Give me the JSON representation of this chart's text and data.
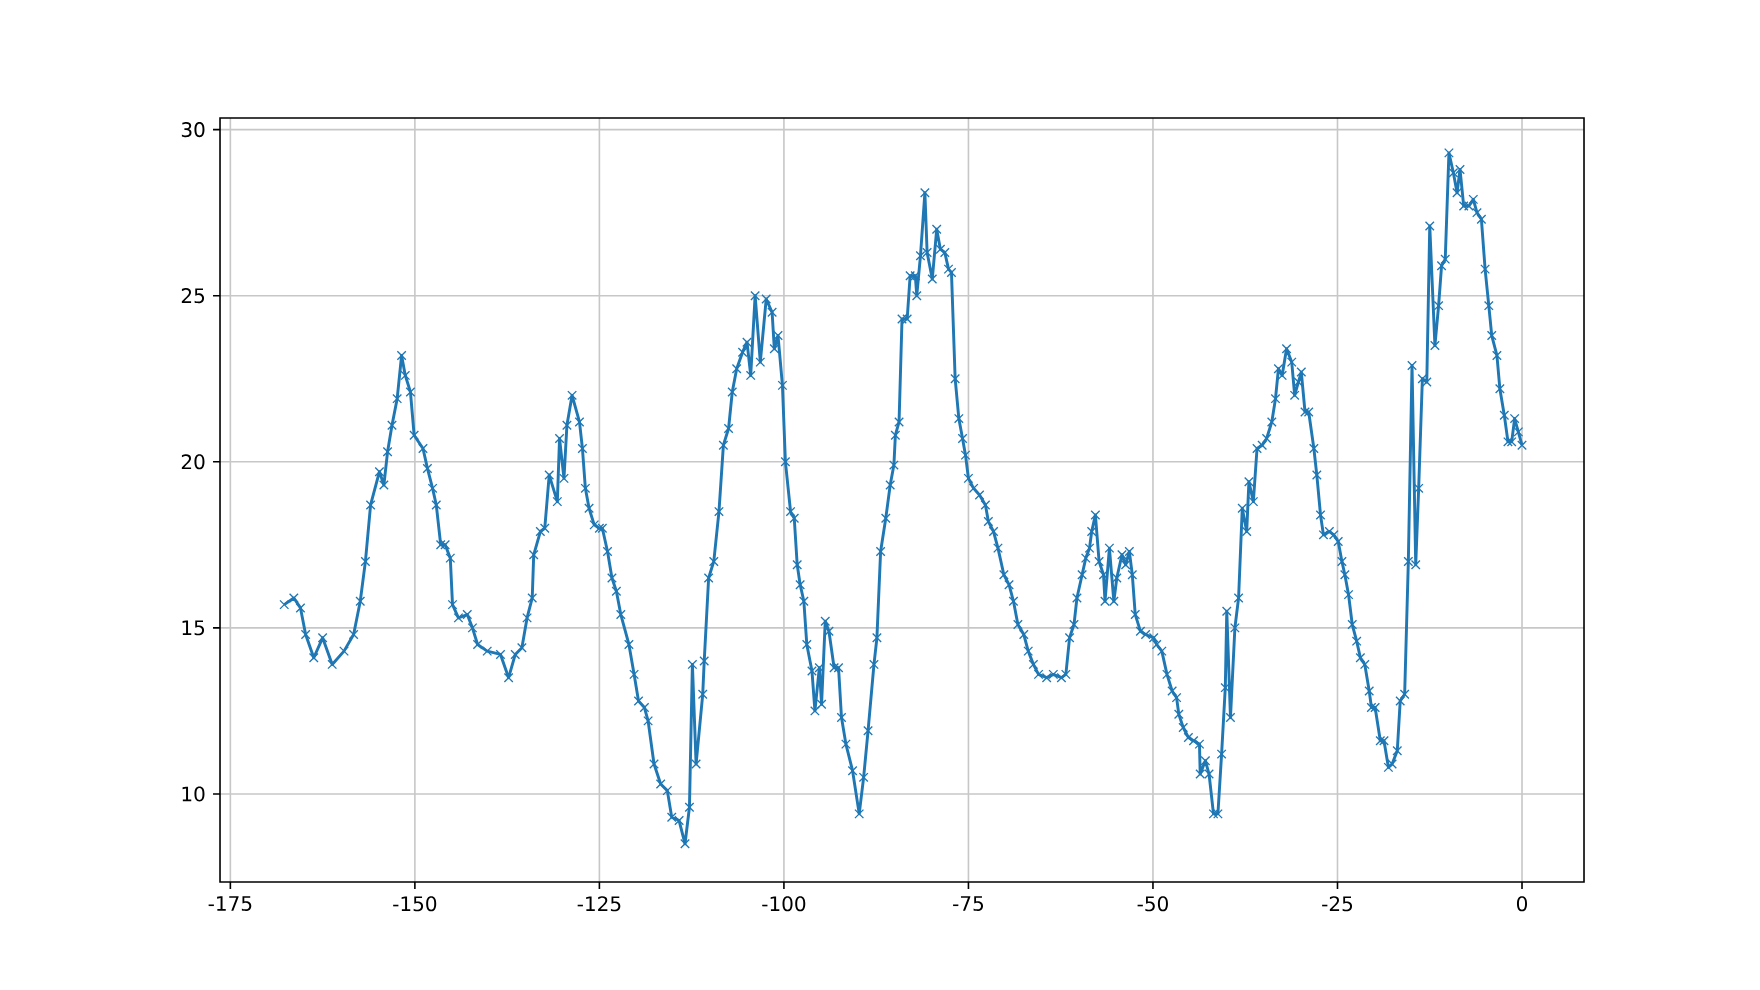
{
  "chart_data": {
    "type": "line",
    "color": "#1f77b4",
    "marker": "cross",
    "line_style": "solid",
    "grid": true,
    "xlim": [
      -176.4,
      8.4
    ],
    "ylim": [
      7.35,
      30.35
    ],
    "xticks": [
      -175,
      -150,
      -125,
      -100,
      -75,
      -50,
      -25,
      0
    ],
    "yticks": [
      10,
      15,
      20,
      25,
      30
    ],
    "x": [
      -167.7,
      -166.4,
      -165.5,
      -164.8,
      -163.7,
      -162.5,
      -161.2,
      -159.6,
      -158.3,
      -157.4,
      -156.7,
      -156.0,
      -154.8,
      -154.2,
      -153.7,
      -153.1,
      -152.4,
      -151.8,
      -151.3,
      -150.6,
      -150.1,
      -148.9,
      -148.3,
      -147.6,
      -147.1,
      -146.5,
      -145.9,
      -145.2,
      -144.9,
      -144.1,
      -142.9,
      -142.2,
      -141.5,
      -140.2,
      -138.4,
      -137.3,
      -136.4,
      -135.5,
      -134.8,
      -134.1,
      -133.9,
      -133.0,
      -132.4,
      -131.8,
      -130.7,
      -130.4,
      -129.8,
      -129.4,
      -128.7,
      -127.7,
      -127.3,
      -126.9,
      -126.4,
      -125.7,
      -125.0,
      -124.6,
      -123.9,
      -123.3,
      -122.7,
      -122.1,
      -121.0,
      -120.3,
      -119.7,
      -118.9,
      -118.4,
      -117.6,
      -116.7,
      -115.8,
      -115.2,
      -114.2,
      -113.4,
      -112.8,
      -112.4,
      -111.9,
      -111.0,
      -110.8,
      -110.2,
      -109.5,
      -108.8,
      -108.2,
      -107.5,
      -107.0,
      -106.4,
      -105.6,
      -105.0,
      -104.5,
      -103.9,
      -103.2,
      -102.4,
      -101.6,
      -101.3,
      -100.8,
      -100.2,
      -99.8,
      -99.1,
      -98.6,
      -98.2,
      -97.8,
      -97.3,
      -96.9,
      -96.2,
      -95.8,
      -95.2,
      -94.9,
      -94.4,
      -93.9,
      -93.2,
      -92.6,
      -92.2,
      -91.6,
      -90.7,
      -89.8,
      -89.2,
      -88.6,
      -87.8,
      -87.4,
      -86.9,
      -86.2,
      -85.6,
      -85.1,
      -84.9,
      -84.4,
      -84.0,
      -83.3,
      -82.9,
      -82.2,
      -82.0,
      -81.5,
      -80.9,
      -80.6,
      -79.9,
      -79.3,
      -78.8,
      -78.2,
      -77.7,
      -77.3,
      -76.8,
      -76.3,
      -75.8,
      -75.4,
      -75.0,
      -74.3,
      -73.5,
      -72.7,
      -72.3,
      -71.6,
      -71.0,
      -70.2,
      -69.5,
      -68.9,
      -68.3,
      -67.5,
      -66.9,
      -66.2,
      -65.5,
      -64.4,
      -63.5,
      -62.4,
      -61.8,
      -61.3,
      -60.7,
      -60.3,
      -59.6,
      -59.1,
      -58.6,
      -58.3,
      -57.8,
      -57.3,
      -56.7,
      -56.5,
      -55.9,
      -55.3,
      -54.9,
      -54.2,
      -53.7,
      -53.2,
      -52.8,
      -52.4,
      -51.7,
      -51.0,
      -49.9,
      -49.5,
      -48.8,
      -48.1,
      -47.4,
      -46.8,
      -46.5,
      -45.9,
      -45.2,
      -44.5,
      -43.7,
      -43.6,
      -42.9,
      -42.4,
      -41.8,
      -41.2,
      -40.7,
      -40.2,
      -40.0,
      -39.5,
      -38.9,
      -38.4,
      -37.9,
      -37.3,
      -37.0,
      -36.4,
      -35.9,
      -35.2,
      -34.6,
      -33.9,
      -33.4,
      -33.0,
      -32.5,
      -31.9,
      -31.2,
      -30.8,
      -30.3,
      -29.9,
      -29.4,
      -28.9,
      -28.2,
      -27.8,
      -27.3,
      -26.9,
      -26.1,
      -25.5,
      -24.9,
      -24.4,
      -24.0,
      -23.5,
      -23.0,
      -22.4,
      -21.9,
      -21.3,
      -20.7,
      -20.4,
      -19.9,
      -19.2,
      -18.7,
      -18.1,
      -17.6,
      -16.9,
      -16.5,
      -15.9,
      -15.4,
      -14.9,
      -14.4,
      -14.0,
      -13.5,
      -12.9,
      -12.5,
      -11.8,
      -11.3,
      -10.9,
      -10.4,
      -9.9,
      -9.3,
      -8.8,
      -8.4,
      -7.9,
      -7.2,
      -6.6,
      -6.1,
      -5.5,
      -5.0,
      -4.5,
      -4.1,
      -3.4,
      -3.0,
      -2.4,
      -1.9,
      -1.4,
      -1.0,
      -0.5,
      0.0
    ],
    "values": [
      15.7,
      15.9,
      15.6,
      14.8,
      14.1,
      14.7,
      13.9,
      14.3,
      14.8,
      15.8,
      17.0,
      18.7,
      19.7,
      19.3,
      20.3,
      21.1,
      21.9,
      23.2,
      22.6,
      22.1,
      20.8,
      20.4,
      19.8,
      19.2,
      18.7,
      17.5,
      17.5,
      17.1,
      15.7,
      15.3,
      15.4,
      15.0,
      14.5,
      14.3,
      14.2,
      13.5,
      14.2,
      14.4,
      15.3,
      15.9,
      17.2,
      17.9,
      18.0,
      19.6,
      18.8,
      20.7,
      19.5,
      21.1,
      22.0,
      21.2,
      20.4,
      19.2,
      18.6,
      18.1,
      18.0,
      18.0,
      17.3,
      16.5,
      16.1,
      15.4,
      14.5,
      13.6,
      12.8,
      12.6,
      12.2,
      10.9,
      10.3,
      10.1,
      9.3,
      9.2,
      8.5,
      9.6,
      13.9,
      10.9,
      13.0,
      14.0,
      16.5,
      17.0,
      18.5,
      20.5,
      21.0,
      22.1,
      22.8,
      23.3,
      23.6,
      22.6,
      25.0,
      23.0,
      24.9,
      24.5,
      23.4,
      23.8,
      22.3,
      20.0,
      18.5,
      18.3,
      16.9,
      16.3,
      15.8,
      14.5,
      13.7,
      12.5,
      13.8,
      12.7,
      15.2,
      14.9,
      13.8,
      13.8,
      12.3,
      11.5,
      10.7,
      9.4,
      10.5,
      11.9,
      13.9,
      14.7,
      17.3,
      18.3,
      19.3,
      19.9,
      20.8,
      21.2,
      24.3,
      24.3,
      25.6,
      25.6,
      25.0,
      26.2,
      28.1,
      26.3,
      25.5,
      27.0,
      26.4,
      26.3,
      25.8,
      25.7,
      22.5,
      21.3,
      20.7,
      20.2,
      19.5,
      19.2,
      19.0,
      18.7,
      18.2,
      17.9,
      17.4,
      16.6,
      16.3,
      15.8,
      15.1,
      14.8,
      14.3,
      13.9,
      13.6,
      13.5,
      13.6,
      13.5,
      13.6,
      14.7,
      15.1,
      15.9,
      16.6,
      17.1,
      17.4,
      17.9,
      18.4,
      17.0,
      16.6,
      15.8,
      17.4,
      15.8,
      16.5,
      17.2,
      16.9,
      17.3,
      16.6,
      15.4,
      14.9,
      14.8,
      14.7,
      14.5,
      14.3,
      13.6,
      13.1,
      12.9,
      12.4,
      12.0,
      11.7,
      11.6,
      11.5,
      10.6,
      11.0,
      10.6,
      9.4,
      9.4,
      11.2,
      13.2,
      15.5,
      12.3,
      15.0,
      15.9,
      18.6,
      17.9,
      19.4,
      18.8,
      20.4,
      20.5,
      20.7,
      21.2,
      21.9,
      22.8,
      22.6,
      23.4,
      23.0,
      22.0,
      22.4,
      22.7,
      21.5,
      21.5,
      20.4,
      19.6,
      18.4,
      17.8,
      17.9,
      17.8,
      17.6,
      17.0,
      16.6,
      16.0,
      15.1,
      14.6,
      14.1,
      13.9,
      13.1,
      12.6,
      12.6,
      11.6,
      11.6,
      10.8,
      10.9,
      11.3,
      12.8,
      13.0,
      17.0,
      22.9,
      16.9,
      19.2,
      22.5,
      22.4,
      27.1,
      23.5,
      24.7,
      25.9,
      26.1,
      29.3,
      28.7,
      28.1,
      28.8,
      27.7,
      27.7,
      27.9,
      27.5,
      27.3,
      25.8,
      24.7,
      23.8,
      23.2,
      22.2,
      21.4,
      20.6,
      20.6,
      21.3,
      20.9,
      20.5
    ]
  }
}
